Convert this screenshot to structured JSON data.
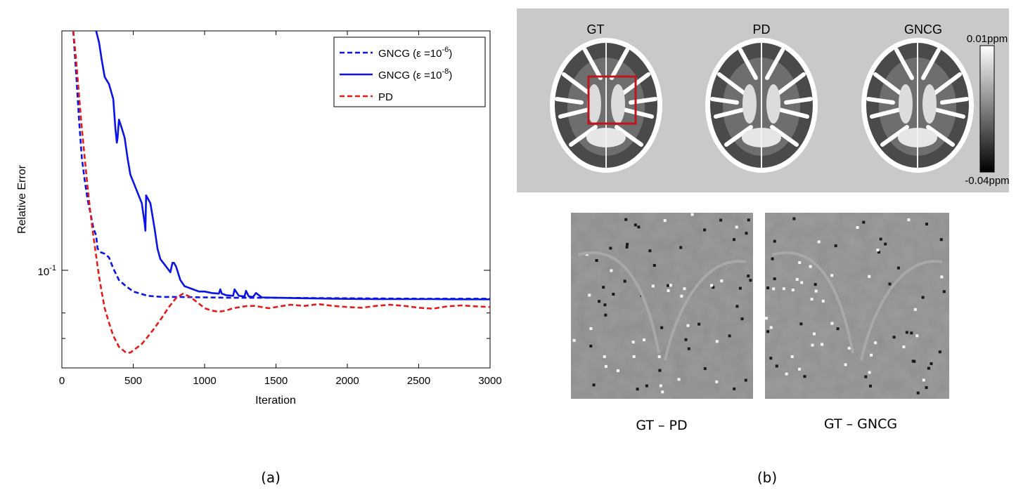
{
  "panels": {
    "a": {
      "caption": "(a)"
    },
    "b": {
      "caption": "(b)",
      "image_titles": [
        "GT",
        "PD",
        "GNCG"
      ],
      "colorbar": {
        "max_label": "0.01ppm",
        "min_label": "-0.04ppm"
      },
      "diff_labels": [
        "GT – PD",
        "GT – GNCG"
      ]
    }
  },
  "colors": {
    "gncg": "#0a14e6",
    "pd": "#e21b1b",
    "roi_box": "#c0141e",
    "panel_bg": "#c9c9c9"
  },
  "chart_data": {
    "type": "line",
    "title": "",
    "xlabel": "Iteration",
    "ylabel": "Relative Error",
    "xlim": [
      0,
      3000
    ],
    "ylim": [
      0.06,
      0.35
    ],
    "yscale": "log",
    "xticks": [
      0,
      500,
      1000,
      1500,
      2000,
      2500,
      3000
    ],
    "xtick_labels": [
      "0",
      "500",
      "1000",
      "1500",
      "2000",
      "2500",
      "3000"
    ],
    "ytick_major": [
      0.1
    ],
    "ytick_major_label_base": "10",
    "ytick_major_label_exp": "-1",
    "ytick_minor": [
      0.08,
      0.07
    ],
    "grid": false,
    "legend_position": "top-right",
    "series": [
      {
        "name": "GNCG (ε =10-6)",
        "legend_base": "GNCG (ε =10",
        "legend_exp": "-6",
        "legend_tail": ")",
        "style": "dashed",
        "color": "#0a14e6",
        "x": [
          80,
          100,
          120,
          140,
          160,
          180,
          200,
          220,
          240,
          250,
          270,
          300,
          330,
          360,
          400,
          450,
          500,
          550,
          600,
          700,
          800,
          1000,
          1200,
          1500,
          2000,
          2500,
          3000
        ],
        "y": [
          0.35,
          0.28,
          0.22,
          0.18,
          0.16,
          0.145,
          0.135,
          0.125,
          0.12,
          0.112,
          0.11,
          0.109,
          0.107,
          0.101,
          0.095,
          0.092,
          0.0895,
          0.0885,
          0.0875,
          0.087,
          0.087,
          0.0868,
          0.0866,
          0.0866,
          0.0864,
          0.0862,
          0.0862
        ]
      },
      {
        "name": "GNCG (ε =10-8)",
        "legend_base": "GNCG (ε =10",
        "legend_exp": "-8",
        "legend_tail": ")",
        "style": "solid",
        "color": "#0a14e6",
        "x": [
          240,
          260,
          280,
          300,
          330,
          360,
          375,
          385,
          390,
          400,
          420,
          440,
          460,
          480,
          520,
          560,
          580,
          585,
          590,
          620,
          650,
          670,
          690,
          720,
          760,
          775,
          785,
          800,
          830,
          860,
          900,
          960,
          1000,
          1050,
          1100,
          1110,
          1120,
          1150,
          1200,
          1210,
          1240,
          1280,
          1290,
          1310,
          1340,
          1360,
          1400,
          1500,
          1600,
          1700,
          1800,
          1900,
          2000,
          2200,
          2400,
          2600,
          2800,
          3000
        ],
        "y": [
          0.35,
          0.33,
          0.3,
          0.275,
          0.265,
          0.245,
          0.21,
          0.195,
          0.2,
          0.22,
          0.21,
          0.2,
          0.18,
          0.165,
          0.153,
          0.142,
          0.128,
          0.123,
          0.148,
          0.142,
          0.124,
          0.112,
          0.106,
          0.103,
          0.099,
          0.104,
          0.104,
          0.102,
          0.095,
          0.092,
          0.091,
          0.0895,
          0.0895,
          0.0888,
          0.0885,
          0.0905,
          0.0885,
          0.0878,
          0.0875,
          0.0905,
          0.0875,
          0.0872,
          0.0898,
          0.0872,
          0.087,
          0.0888,
          0.0868,
          0.0866,
          0.0865,
          0.0864,
          0.0863,
          0.0862,
          0.0861,
          0.086,
          0.086,
          0.086,
          0.0859,
          0.0859
        ]
      },
      {
        "name": "PD",
        "legend_base": "PD",
        "legend_exp": "",
        "legend_tail": "",
        "style": "dashed",
        "color": "#e21b1b",
        "x": [
          80,
          100,
          120,
          140,
          160,
          180,
          200,
          220,
          240,
          260,
          280,
          300,
          330,
          360,
          400,
          450,
          480,
          520,
          560,
          600,
          650,
          700,
          750,
          800,
          850,
          900,
          950,
          1000,
          1050,
          1100,
          1150,
          1200,
          1250,
          1300,
          1350,
          1400,
          1450,
          1500,
          1600,
          1700,
          1800,
          1900,
          2000,
          2100,
          2200,
          2300,
          2400,
          2500,
          2600,
          2700,
          2800,
          2900,
          3000
        ],
        "y": [
          0.35,
          0.3,
          0.25,
          0.21,
          0.18,
          0.155,
          0.135,
          0.12,
          0.108,
          0.097,
          0.089,
          0.082,
          0.076,
          0.071,
          0.067,
          0.065,
          0.065,
          0.0665,
          0.068,
          0.0705,
          0.074,
          0.078,
          0.0825,
          0.0865,
          0.0885,
          0.087,
          0.0845,
          0.082,
          0.081,
          0.0805,
          0.081,
          0.082,
          0.0825,
          0.083,
          0.083,
          0.0825,
          0.082,
          0.0825,
          0.0835,
          0.083,
          0.0838,
          0.083,
          0.0825,
          0.0822,
          0.083,
          0.0835,
          0.083,
          0.0822,
          0.0818,
          0.0828,
          0.0832,
          0.0828,
          0.0825
        ]
      }
    ]
  }
}
